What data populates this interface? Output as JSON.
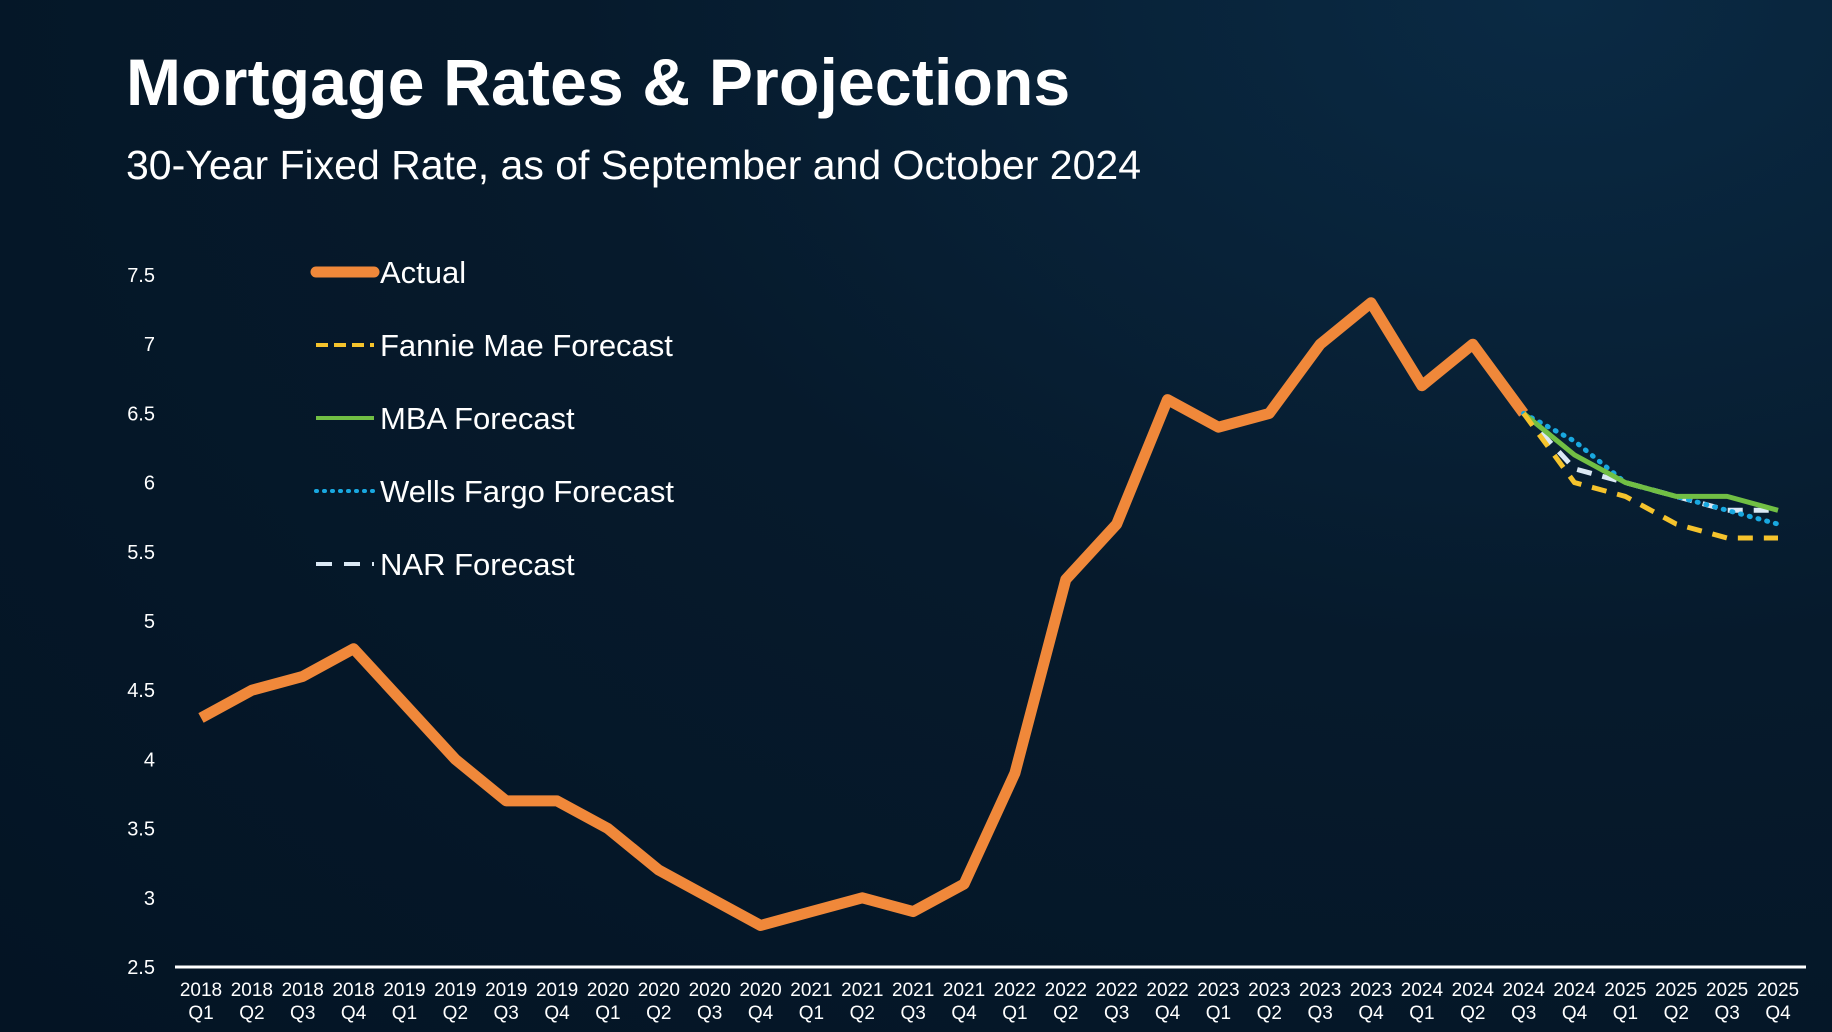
{
  "title": "Mortgage Rates & Projections",
  "subtitle": "30-Year Fixed Rate, as of September and October 2024",
  "chart_data": {
    "type": "line",
    "ylim": [
      2.5,
      7.5
    ],
    "yticks": [
      "2.5",
      "3",
      "3.5",
      "4",
      "4.5",
      "5",
      "5.5",
      "6",
      "6.5",
      "7",
      "7.5"
    ],
    "grid": false,
    "legend_position": "top-left",
    "x_year": [
      "2018",
      "2018",
      "2018",
      "2018",
      "2019",
      "2019",
      "2019",
      "2019",
      "2020",
      "2020",
      "2020",
      "2020",
      "2021",
      "2021",
      "2021",
      "2021",
      "2022",
      "2022",
      "2022",
      "2022",
      "2023",
      "2023",
      "2023",
      "2023",
      "2024",
      "2024",
      "2024",
      "2024",
      "2025",
      "2025",
      "2025",
      "2025"
    ],
    "x_quarter": [
      "Q1",
      "Q2",
      "Q3",
      "Q4",
      "Q1",
      "Q2",
      "Q3",
      "Q4",
      "Q1",
      "Q2",
      "Q3",
      "Q4",
      "Q1",
      "Q2",
      "Q3",
      "Q4",
      "Q1",
      "Q2",
      "Q3",
      "Q4",
      "Q1",
      "Q2",
      "Q3",
      "Q4",
      "Q1",
      "Q2",
      "Q3",
      "Q4",
      "Q1",
      "Q2",
      "Q3",
      "Q4"
    ],
    "series": [
      {
        "name": "Actual",
        "color": "#f0883a",
        "style": "solid",
        "start_index": 0,
        "values": [
          4.3,
          4.5,
          4.6,
          4.8,
          4.4,
          4.0,
          3.7,
          3.7,
          3.5,
          3.2,
          3.0,
          2.8,
          2.9,
          3.0,
          2.9,
          3.1,
          3.9,
          5.3,
          5.7,
          6.6,
          6.4,
          6.5,
          7.0,
          7.3,
          6.7,
          7.0,
          6.5
        ]
      },
      {
        "name": "Fannie Mae Forecast",
        "color": "#f5c32c",
        "style": "dashed",
        "start_index": 26,
        "values": [
          6.5,
          6.0,
          5.9,
          5.7,
          5.6,
          5.6
        ]
      },
      {
        "name": "MBA Forecast",
        "color": "#71bf44",
        "style": "solid",
        "start_index": 26,
        "values": [
          6.5,
          6.2,
          6.0,
          5.9,
          5.9,
          5.8
        ]
      },
      {
        "name": "Wells Fargo Forecast",
        "color": "#19a8e0",
        "style": "dotted",
        "start_index": 26,
        "values": [
          6.5,
          6.3,
          6.0,
          5.9,
          5.8,
          5.7
        ]
      },
      {
        "name": "NAR Forecast",
        "color": "#dbe9f5",
        "style": "dashed",
        "start_index": 26,
        "values": [
          6.5,
          6.1,
          6.0,
          5.9,
          5.8,
          5.8
        ]
      }
    ]
  }
}
